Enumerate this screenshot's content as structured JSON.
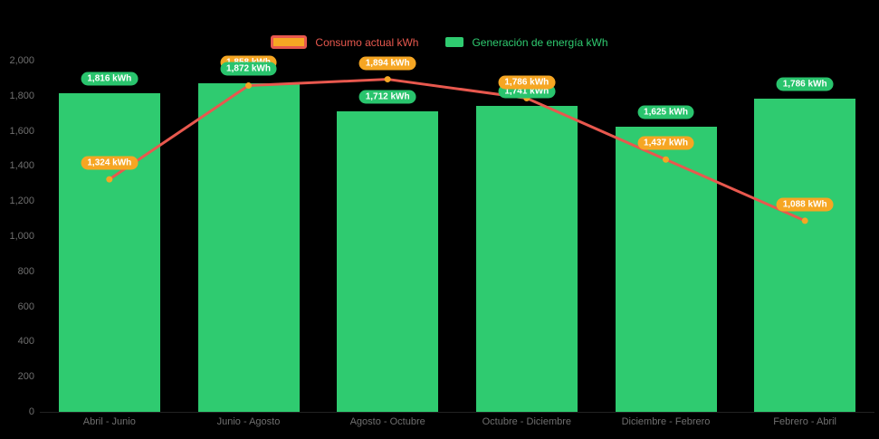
{
  "chart_data": {
    "type": "bar+line",
    "title": "",
    "categories": [
      "Abril - Junio",
      "Junio - Agosto",
      "Agosto - Octubre",
      "Octubre - Diciembre",
      "Diciembre - Febrero",
      "Febrero - Abril"
    ],
    "series": [
      {
        "name": "Consumo actual kWh",
        "type": "line",
        "values": [
          1324,
          1858,
          1894,
          1786,
          1437,
          1088
        ],
        "labels": [
          "1,324 kWh",
          "1,858 kWh",
          "1,894 kWh",
          "1,786 kWh",
          "1,437 kWh",
          "1,088 kWh"
        ],
        "color": "#e8584e",
        "marker_color": "#f6a623",
        "label_bg": "#f6a623"
      },
      {
        "name": "Generación de energía kWh",
        "type": "bar",
        "values": [
          1816,
          1872,
          1712,
          1741,
          1625,
          1786
        ],
        "labels": [
          "1,816 kWh",
          "1,872 kWh",
          "1,712 kWh",
          "1,741 kWh",
          "1,625 kWh",
          "1,786 kWh"
        ],
        "color": "#2fcb70",
        "label_bg": "#29c46d"
      }
    ],
    "ylim": [
      0,
      2000
    ],
    "y_ticks": {
      "values": [
        0,
        200,
        400,
        600,
        800,
        1000,
        1200,
        1400,
        1600,
        1800,
        2000
      ],
      "labels": [
        "0",
        "200",
        "400",
        "600",
        "800",
        "1,000",
        "1,200",
        "1,400",
        "1,600",
        "1,800",
        "2,000"
      ]
    },
    "grid": false,
    "legend_position": "top-center",
    "background": "#000000",
    "axis_text_color": "#6f6f6f",
    "label_layout": {
      "line_label_behind_bar_label": [
        false,
        true,
        false,
        false,
        false,
        false
      ]
    }
  }
}
